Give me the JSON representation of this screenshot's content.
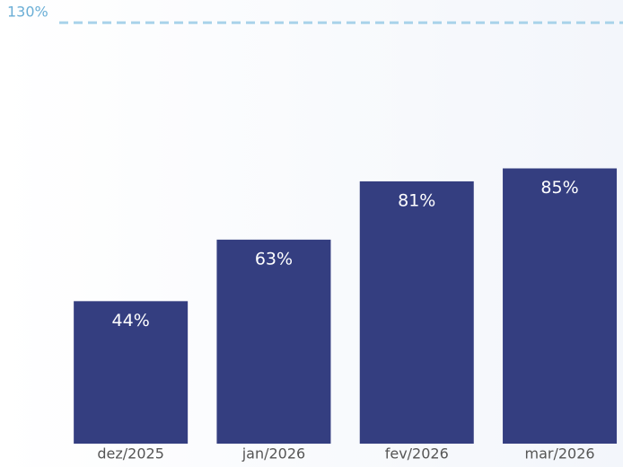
{
  "chart_data": {
    "type": "bar",
    "categories": [
      "dez/2025",
      "jan/2026",
      "fev/2026",
      "mar/2026"
    ],
    "values": [
      44,
      63,
      81,
      85
    ],
    "value_labels": [
      "44%",
      "63%",
      "81%",
      "85%"
    ],
    "color": "#343e80",
    "ylim": [
      0,
      137
    ],
    "reference_line": {
      "value": 130,
      "label": "130%",
      "color": "#a9d3ea"
    }
  }
}
